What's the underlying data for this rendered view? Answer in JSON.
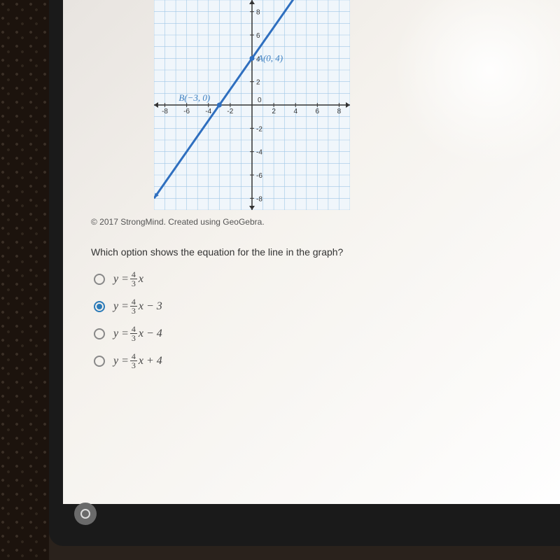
{
  "graph": {
    "type": "line",
    "xlim": [
      -9,
      9
    ],
    "ylim": [
      -9,
      9
    ],
    "tick_step": 2,
    "x_ticks": [
      -8,
      -6,
      -4,
      -2,
      0,
      2,
      4,
      6,
      8
    ],
    "y_ticks": [
      -8,
      -6,
      -4,
      -2,
      0,
      2,
      4,
      6,
      8
    ],
    "grid_color": "#9fc7e6",
    "axis_color": "#333333",
    "line_color": "#2f6fbf",
    "line_width": 3,
    "tick_label_color": "#333333",
    "tick_label_fontsize": 10,
    "background_color": "#f0f6fb",
    "points": {
      "A": {
        "x": 0,
        "y": 4,
        "label": "A(0, 4)",
        "label_color": "#3d7fc1"
      },
      "B": {
        "x": -3,
        "y": 0,
        "label": "B(−3, 0)",
        "label_color": "#3d7fc1"
      }
    },
    "line_points": [
      [
        -9,
        -8
      ],
      [
        4.5,
        10
      ]
    ]
  },
  "copyright": "© 2017 StrongMind. Created using GeoGebra.",
  "question": "Which option shows the equation for the line in the graph?",
  "options": [
    {
      "prefix": "y = ",
      "frac_num": "4",
      "frac_den": "3",
      "suffix": "x",
      "selected": false
    },
    {
      "prefix": "y = ",
      "frac_num": "4",
      "frac_den": "3",
      "suffix": "x − 3",
      "selected": true
    },
    {
      "prefix": "y = ",
      "frac_num": "4",
      "frac_den": "3",
      "suffix": "x − 4",
      "selected": false
    },
    {
      "prefix": "y = ",
      "frac_num": "4",
      "frac_den": "3",
      "suffix": "x + 4",
      "selected": false
    }
  ]
}
